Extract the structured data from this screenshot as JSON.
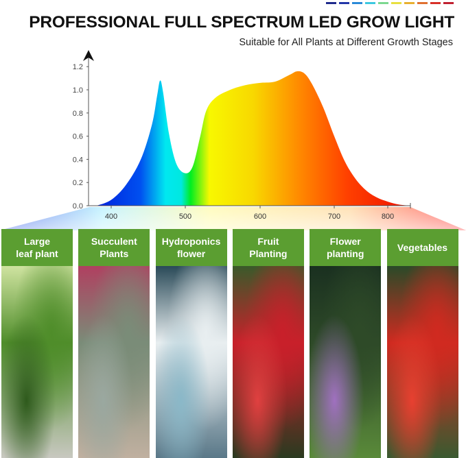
{
  "header": {
    "title": "PROFESSIONAL FULL SPECTRUM LED GROW LIGHT",
    "subtitle": "Suitable for All Plants at Different Growth Stages",
    "swatch_colors": [
      "#1e2a8c",
      "#2236a8",
      "#2a8ad8",
      "#3cc8e0",
      "#7cd890",
      "#e8e040",
      "#e8b030",
      "#e07030",
      "#d83028",
      "#c02030"
    ]
  },
  "chart_data": {
    "type": "area",
    "title": "",
    "xlabel": "",
    "ylabel": "",
    "xlim": [
      380,
      840
    ],
    "ylim": [
      0,
      1.2
    ],
    "grid": false,
    "x_ticks": [
      "400",
      "500",
      "600",
      "700",
      "800"
    ],
    "y_ticks": [
      "0.0",
      "0.2",
      "0.4",
      "0.6",
      "0.8",
      "1.0",
      "1.2"
    ],
    "fill": "visible spectrum gradient (blue to red)",
    "series": [
      {
        "x": [
          380,
          400,
          420,
          440,
          455,
          462,
          466,
          470,
          478,
          488,
          500,
          510,
          520,
          528,
          540,
          560,
          580,
          600,
          620,
          640,
          650,
          660,
          670,
          685,
          700,
          720,
          740,
          760,
          780,
          800,
          820,
          840
        ],
        "values": [
          0,
          0.05,
          0.18,
          0.4,
          0.7,
          0.95,
          1.08,
          0.98,
          0.62,
          0.36,
          0.28,
          0.34,
          0.6,
          0.82,
          0.93,
          1.0,
          1.04,
          1.06,
          1.07,
          1.13,
          1.16,
          1.14,
          1.05,
          0.85,
          0.6,
          0.38,
          0.23,
          0.13,
          0.07,
          0.035,
          0.01,
          0
        ]
      }
    ]
  },
  "panels": [
    {
      "label_lines": [
        "Large",
        "leaf plant"
      ],
      "photo": "green leaf seedlings",
      "colors": [
        "#cfe3a0",
        "#4f8d2a",
        "#2e5a1c",
        "#c8c8c0"
      ]
    },
    {
      "label_lines": [
        "Succulent",
        "Plants"
      ],
      "photo": "succulents",
      "colors": [
        "#b04060",
        "#7a8c78",
        "#9aa8a0",
        "#c0b0a0"
      ]
    },
    {
      "label_lines": [
        "Hydroponics",
        "flower"
      ],
      "photo": "white flowers in glass vase",
      "colors": [
        "#2a4a58",
        "#e8eef0",
        "#8ab8c8",
        "#5a7888"
      ]
    },
    {
      "label_lines": [
        "Fruit",
        "Planting"
      ],
      "photo": "strawberries",
      "colors": [
        "#3a5a2a",
        "#c8202a",
        "#e04040",
        "#2a3a20"
      ]
    },
    {
      "label_lines": [
        "Flower",
        "planting"
      ],
      "photo": "purple flower stalk",
      "colors": [
        "#1a3020",
        "#2e4a28",
        "#a070c0",
        "#5a8a3a"
      ]
    },
    {
      "label_lines": [
        "Vegetables"
      ],
      "photo": "tomatoes on vine",
      "colors": [
        "#2a4a28",
        "#d02a20",
        "#e84030",
        "#3a5a30"
      ]
    }
  ]
}
